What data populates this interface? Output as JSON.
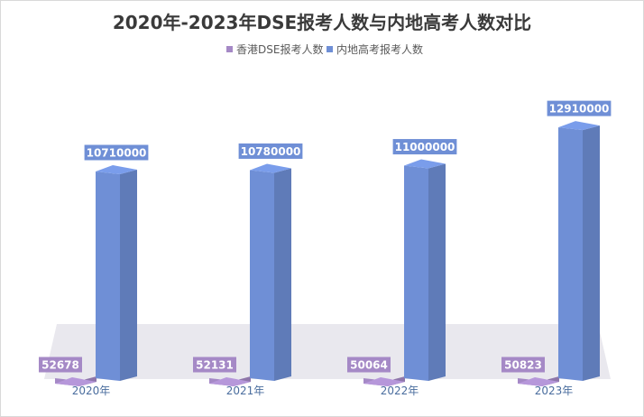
{
  "chart_data": {
    "type": "bar",
    "title": "2020年-2023年DSE报考人数与内地高考人数对比",
    "categories": [
      "2020年",
      "2021年",
      "2022年",
      "2023年"
    ],
    "series": [
      {
        "name": "香港DSE报考人数",
        "values": [
          52678,
          52131,
          50064,
          50823
        ],
        "color": "#a589c6"
      },
      {
        "name": "内地高考报考人数",
        "values": [
          10710000,
          10780000,
          11000000,
          12910000
        ],
        "color": "#6f8fd6"
      }
    ],
    "ylim": [
      0,
      13500000
    ],
    "legend_position": "top",
    "grid": false,
    "data_labels": true
  }
}
